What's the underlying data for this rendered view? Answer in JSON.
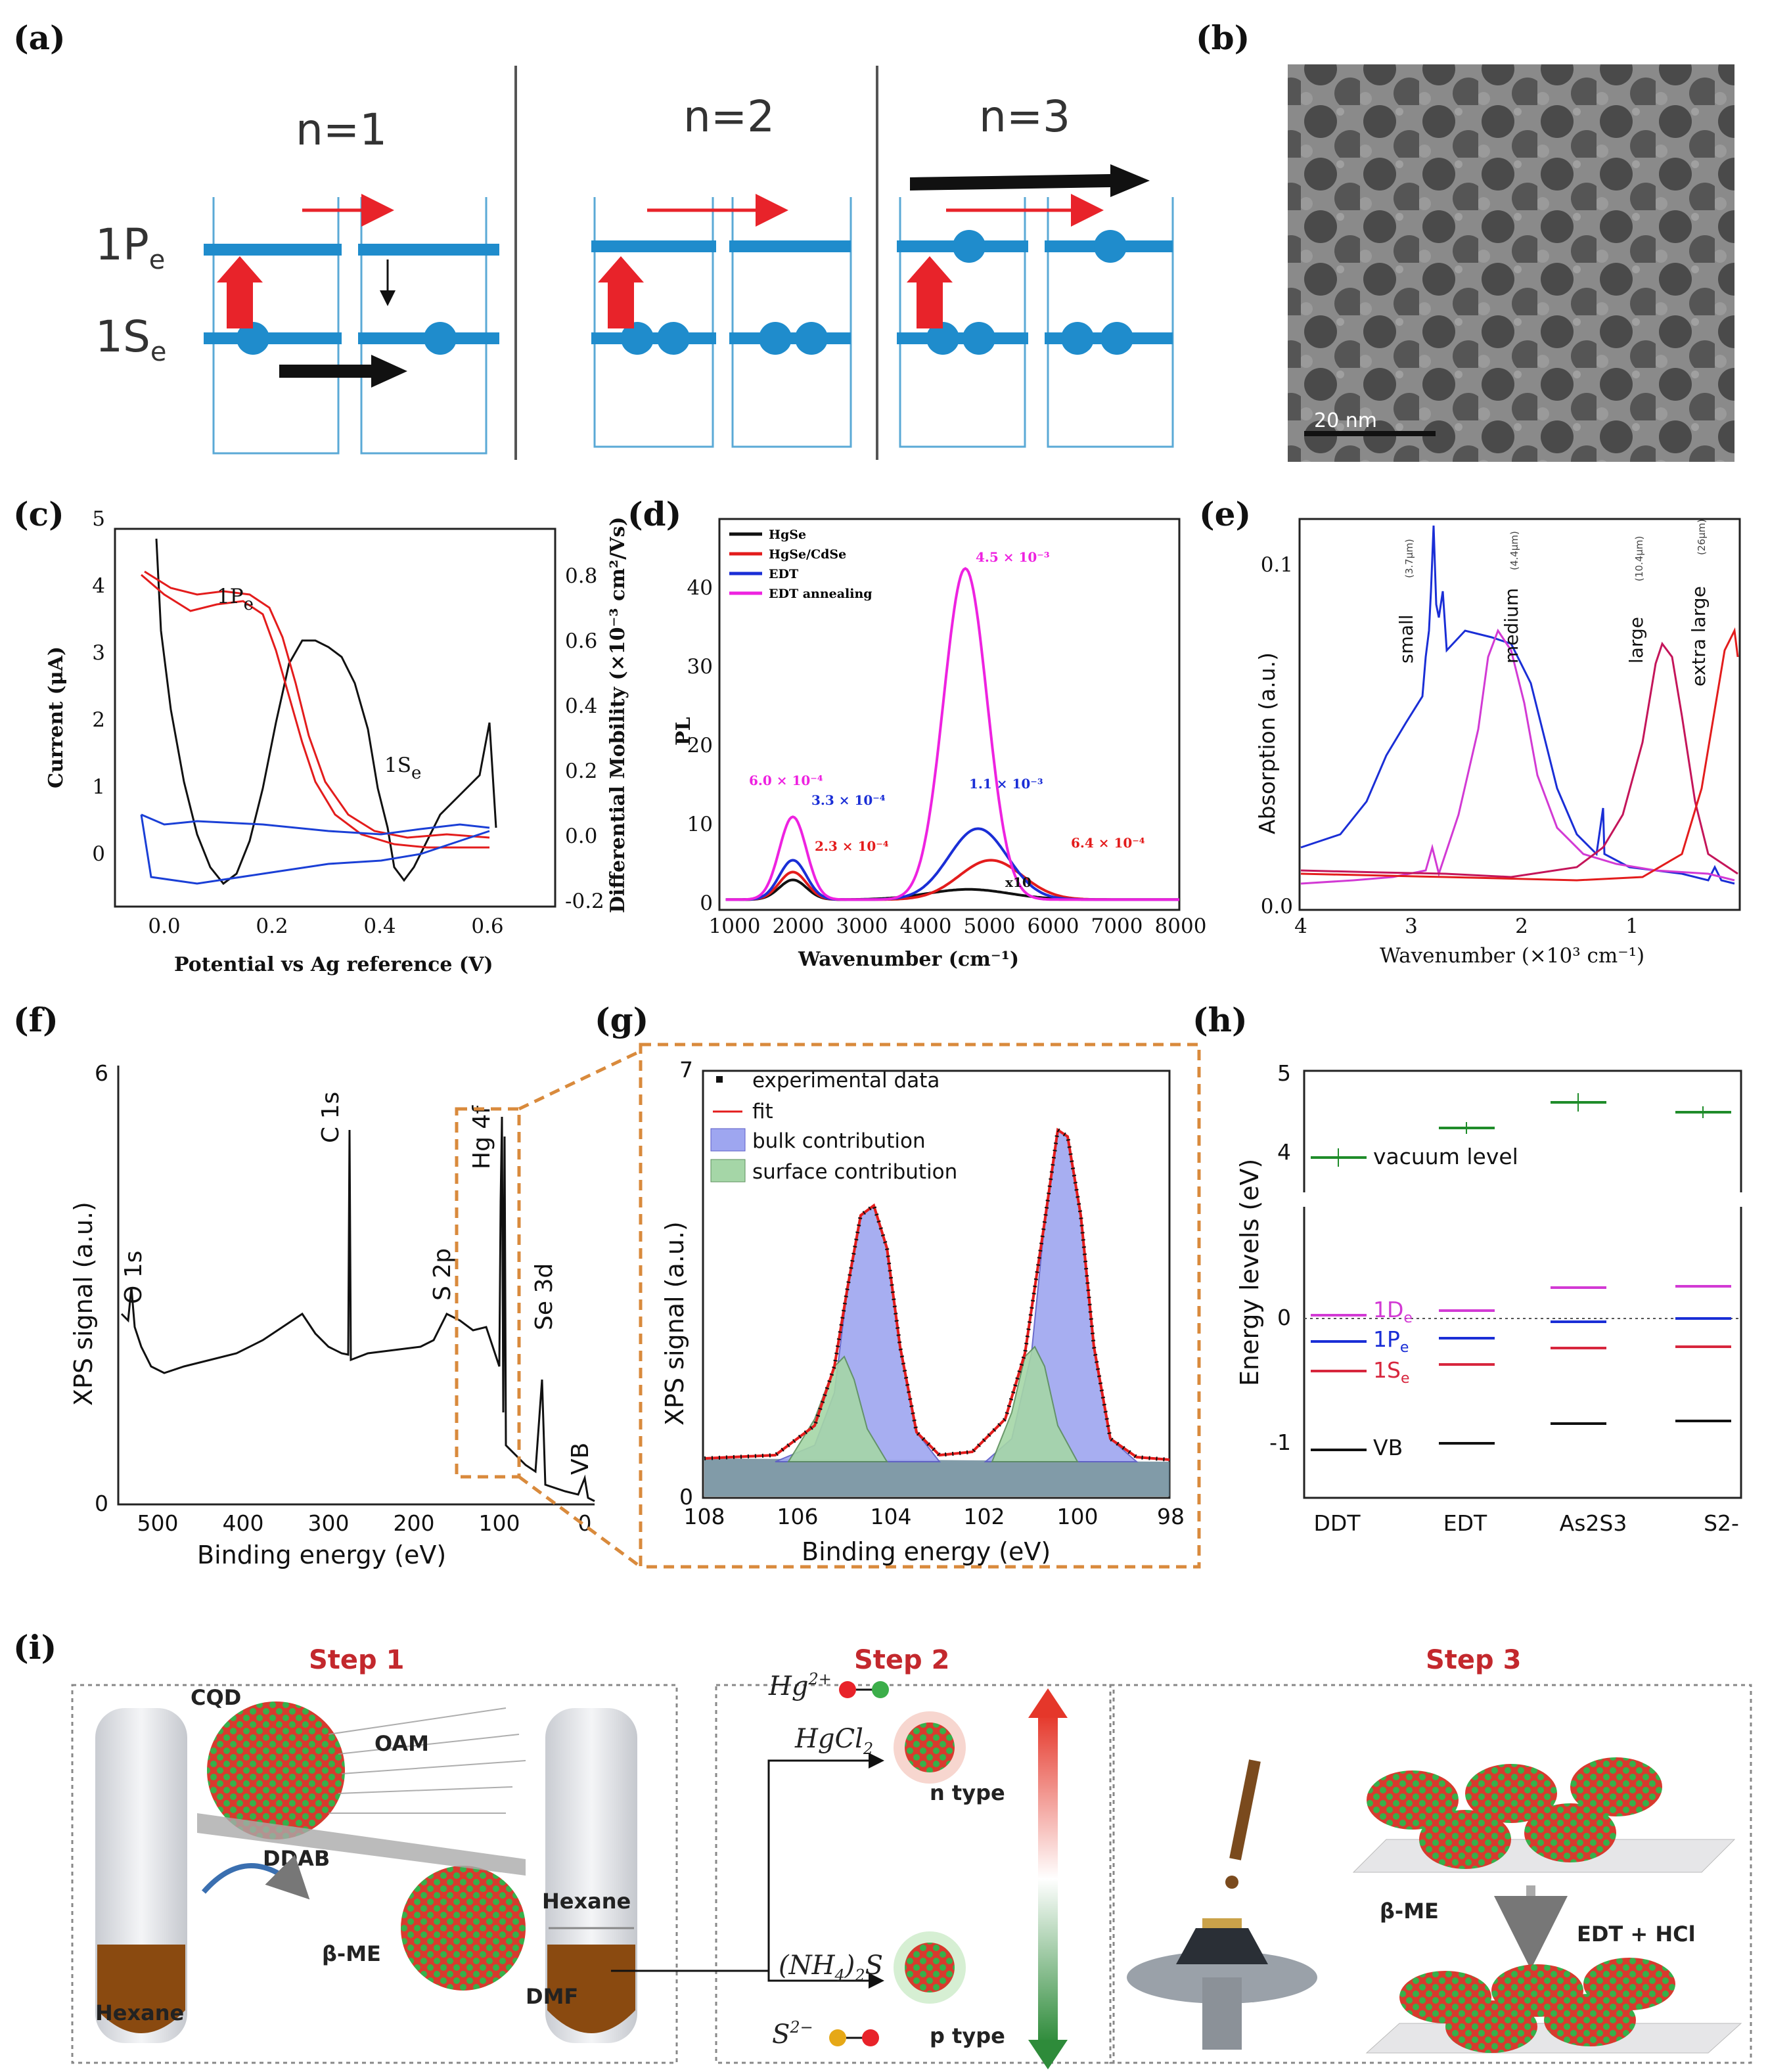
{
  "panels": {
    "a": "(a)",
    "b": "(b)",
    "c": "(c)",
    "d": "(d)",
    "e": "(e)",
    "f": "(f)",
    "g": "(g)",
    "h": "(h)",
    "i": "(i)"
  },
  "a": {
    "n1": "n=1",
    "n2": "n=2",
    "n3": "n=3",
    "p_level": "1P",
    "s_level": "1S",
    "sub": "e"
  },
  "b": {
    "scale": "20 nm"
  },
  "c": {
    "ylabel_left": "Current (μA)",
    "ylabel_right": "Differential Mobility (×10⁻³ cm²/Vs)",
    "xlabel": "Potential vs Ag reference (V)",
    "p_peak": "1P",
    "s_peak": "1S",
    "sub": "e",
    "yticks_left": [
      "0",
      "1",
      "2",
      "3",
      "4",
      "5"
    ],
    "yticks_right": [
      "-0.2",
      "0.0",
      "0.2",
      "0.4",
      "0.6",
      "0.8"
    ],
    "xticks": [
      "0.0",
      "0.2",
      "0.4",
      "0.6"
    ]
  },
  "d": {
    "ylabel": "PL",
    "xlabel": "Wavenumber (cm⁻¹)",
    "xticks": [
      "1000",
      "2000",
      "3000",
      "4000",
      "5000",
      "6000",
      "7000",
      "8000"
    ],
    "yticks": [
      "0",
      "10",
      "20",
      "30",
      "40"
    ],
    "legend": [
      "HgSe",
      "HgSe/CdSe",
      "EDT",
      "EDT annealing"
    ],
    "ann": [
      "4.5 × 10⁻³",
      "6.0 × 10⁻⁴",
      "3.3 × 10⁻⁴",
      "2.3 × 10⁻⁴",
      "1.1 × 10⁻³",
      "6.4 × 10⁻⁴",
      "x10"
    ]
  },
  "e": {
    "ylabel": "Absorption (a.u.)",
    "xlabel": "Wavenumber (×10³ cm⁻¹)",
    "xticks": [
      "4",
      "3",
      "2",
      "1"
    ],
    "yticks": [
      "0.0",
      "0.1"
    ],
    "curves": [
      "small",
      "medium",
      "large",
      "extra large"
    ],
    "sizes": [
      "(3.7μm)",
      "(4.4μm)",
      "(10.4μm)",
      "(26μm)"
    ]
  },
  "f": {
    "ylabel": "XPS signal (a.u.)",
    "xlabel": "Binding energy (eV)",
    "xticks": [
      "500",
      "400",
      "300",
      "200",
      "100",
      "0"
    ],
    "yticks": [
      "0",
      "6"
    ],
    "peaks": [
      "O 1s",
      "C 1s",
      "S 2p",
      "Hg 4f",
      "Se 3d",
      "VB"
    ]
  },
  "g": {
    "ylabel": "XPS signal (a.u.)",
    "xlabel": "Binding energy (eV)",
    "xticks": [
      "108",
      "106",
      "104",
      "102",
      "100",
      "98"
    ],
    "yticks": [
      "0",
      "7"
    ],
    "legend": [
      "experimental data",
      "fit",
      "bulk contribution",
      "surface contribution"
    ]
  },
  "h": {
    "ylabel": "Energy levels (eV)",
    "xticks": [
      "DDT",
      "EDT",
      "As2S3",
      "S2-"
    ],
    "yticks": [
      "5",
      "4",
      "0",
      "-1"
    ],
    "levels": [
      "vacuum level",
      "1D",
      "1P",
      "1S",
      "VB"
    ],
    "sub": "e"
  },
  "i": {
    "steps": [
      "Step 1",
      "Step 2",
      "Step 3"
    ],
    "labels": {
      "cqd": "CQD",
      "oam": "OAM",
      "ddab": "DDAB",
      "bme": "β-ME",
      "hexane": "Hexane",
      "hexane2": "Hexane",
      "dmf": "DMF",
      "ntype": "n type",
      "ptype": "p type",
      "bme2": "β-ME",
      "edt": "EDT + HCl"
    },
    "chem": [
      "Hg",
      "2+",
      "HgCl",
      "2",
      "(NH",
      "4",
      ")",
      "2",
      "S",
      "S",
      "2−"
    ]
  }
}
